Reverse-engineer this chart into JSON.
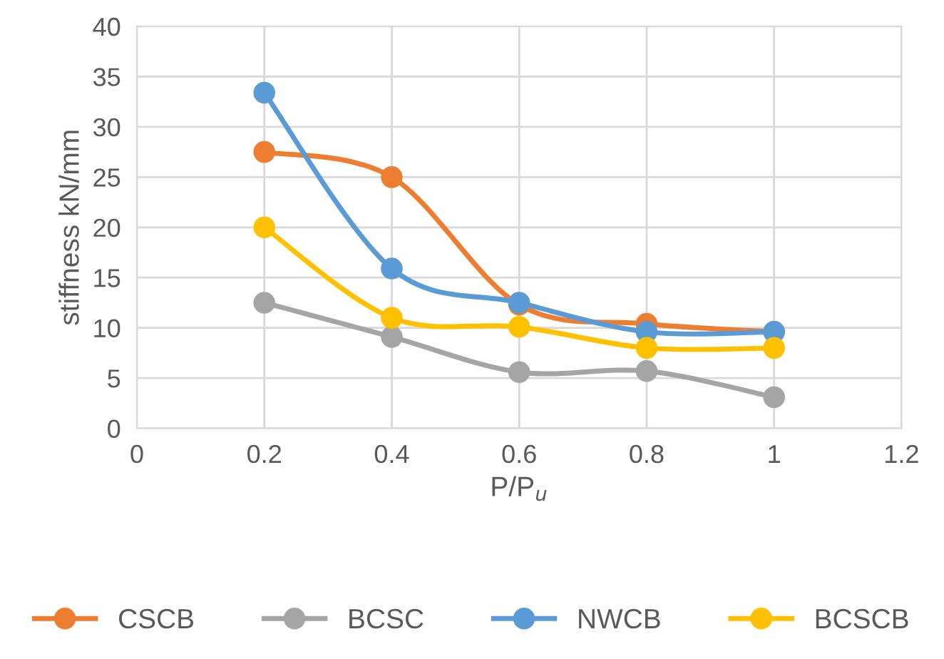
{
  "chart_data": {
    "type": "line",
    "xlabel": "P/P$_{u}$",
    "ylabel": "stiffness kN/mm",
    "x": [
      0.2,
      0.4,
      0.6,
      0.8,
      1
    ],
    "series": [
      {
        "name": "CSCB",
        "color": "#ed7d31",
        "values": [
          27.5,
          25,
          12.3,
          10.4,
          9.6
        ]
      },
      {
        "name": "BCSC",
        "color": "#a5a5a5",
        "values": [
          12.5,
          9.1,
          5.6,
          5.7,
          3.1
        ]
      },
      {
        "name": "NWCB",
        "color": "#5b9bd5",
        "values": [
          33.4,
          15.9,
          12.5,
          9.6,
          9.6
        ]
      },
      {
        "name": "BCSCB",
        "color": "#ffc000",
        "values": [
          20,
          11,
          10.1,
          8,
          8
        ]
      }
    ],
    "xlim": [
      0,
      1.2
    ],
    "xticks": [
      0,
      0.2,
      0.4,
      0.6,
      0.8,
      1,
      1.2
    ],
    "ylim": [
      0,
      40
    ],
    "yticks": [
      0,
      5,
      10,
      15,
      20,
      25,
      30,
      35,
      40
    ],
    "grid": true,
    "legend": "bottom",
    "marker": "circle",
    "line_style": "solid"
  }
}
